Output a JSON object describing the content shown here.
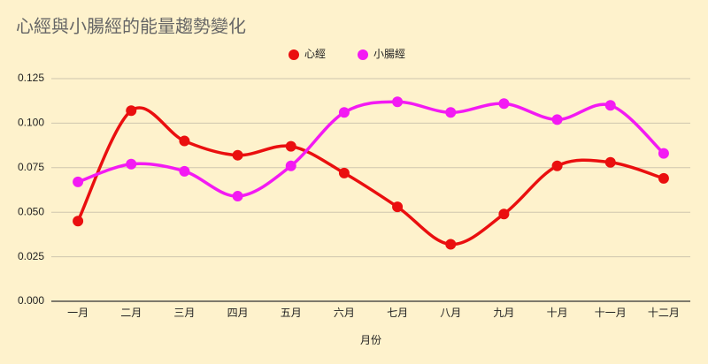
{
  "chart_data": {
    "type": "line",
    "title": "心經與小腸經的能量趨勢變化",
    "x_label": "月份",
    "categories": [
      "一月",
      "二月",
      "三月",
      "四月",
      "五月",
      "六月",
      "七月",
      "八月",
      "九月",
      "十月",
      "十一月",
      "十二月"
    ],
    "series": [
      {
        "name": "心經",
        "color": "#ea0f0f",
        "values": [
          0.045,
          0.107,
          0.09,
          0.082,
          0.087,
          0.072,
          0.053,
          0.032,
          0.049,
          0.076,
          0.078,
          0.069
        ]
      },
      {
        "name": "小腸經",
        "color": "#f31af3",
        "values": [
          0.067,
          0.077,
          0.073,
          0.059,
          0.076,
          0.106,
          0.112,
          0.106,
          0.111,
          0.102,
          0.11,
          0.083
        ]
      }
    ],
    "ylim": [
      0,
      0.125
    ],
    "yticks": [
      {
        "value": 0,
        "label": "0.000"
      },
      {
        "value": 0.025,
        "label": "0.025"
      },
      {
        "value": 0.05,
        "label": "0.050"
      },
      {
        "value": 0.075,
        "label": "0.075"
      },
      {
        "value": 0.1,
        "label": "0.100"
      },
      {
        "value": 0.125,
        "label": "0.125"
      }
    ],
    "grid": true,
    "smooth": true,
    "legend": "top"
  }
}
